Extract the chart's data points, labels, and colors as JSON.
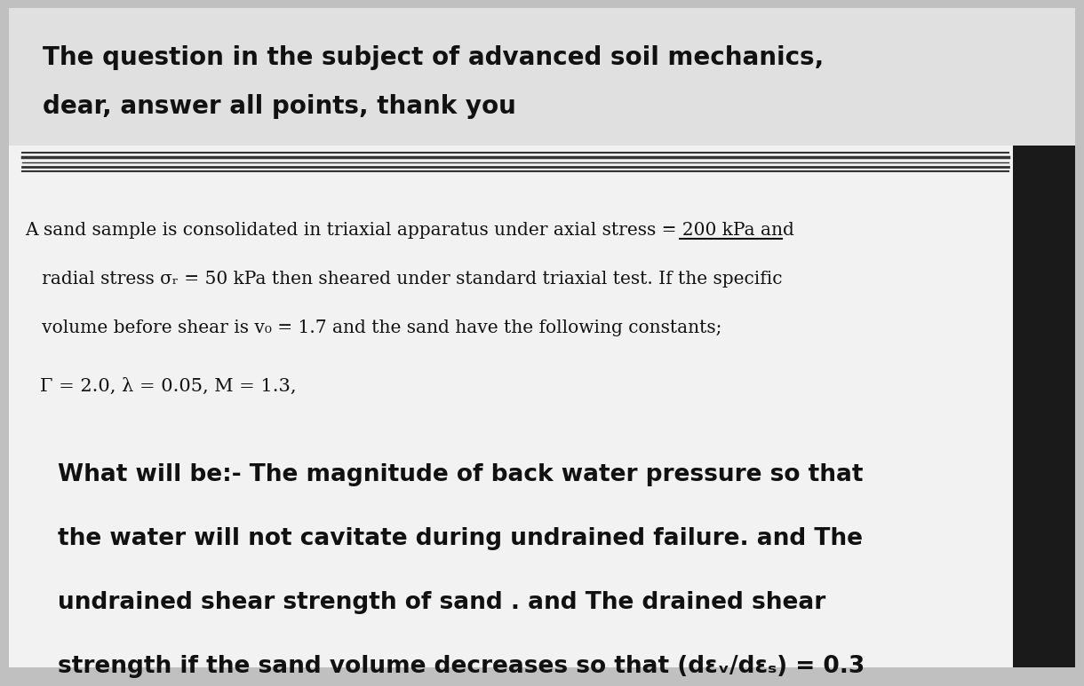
{
  "bg_top_color": "#c8c8c8",
  "bg_bottom_color": "#e8e8e8",
  "paper_color": "#f5f5f5",
  "title_line1": "The question in the subject of advanced soil mechanics,",
  "title_line2": "dear, answer all points, thank you",
  "body_line1": "A sand sample is consolidated in triaxial apparatus under axial stress = 200 kPa and",
  "body_line2": "   radial stress σᵣ = 50 kPa then sheared under standard triaxial test. If the specific",
  "body_line3": "   volume before shear is v₀ = 1.7 and the sand have the following constants;",
  "constants_line": "Γ = 2.0, λ = 0.05, M = 1.3,",
  "question_line1": "What will be:- The magnitude of back water pressure so that",
  "question_line2": "the water will not cavitate during undrained failure. and The",
  "question_line3": "undrained shear strength of sand . and The drained shear",
  "question_line4": "strength if the sand volume decreases so that (dεᵥ/dεₛ) = 0.3",
  "title_fontsize": 20,
  "body_fontsize": 14.5,
  "constants_fontsize": 15,
  "question_fontsize": 19,
  "dark_strip_color": "#1a1a1a",
  "divider_color": "#444444",
  "text_color": "#111111"
}
